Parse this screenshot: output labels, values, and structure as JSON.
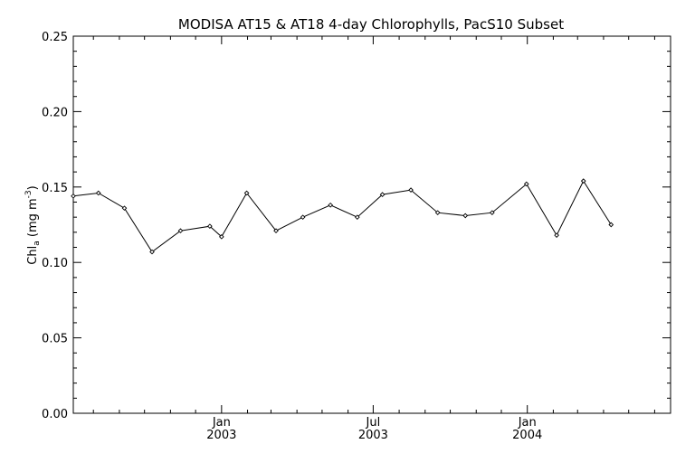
{
  "chart_data": {
    "type": "line",
    "title": "MODISA AT15 & AT18 4-day Chlorophylls, PacS10 Subset",
    "ylabel": {
      "prefix": "Chl",
      "subscript": "a",
      "units_open": " (mg m",
      "superscript": "-3",
      "units_close": ")"
    },
    "xlabel": "",
    "ylim": [
      0.0,
      0.25
    ],
    "xlim": [
      "2002-07-08",
      "2004-06-20"
    ],
    "yticks": [
      "0.00",
      "0.05",
      "0.10",
      "0.15",
      "0.20",
      "0.25"
    ],
    "xticks": [
      {
        "date": "2003-01-01",
        "month": "Jan",
        "year": "2003"
      },
      {
        "date": "2003-07-01",
        "month": "Jul",
        "year": "2003"
      },
      {
        "date": "2004-01-01",
        "month": "Jan",
        "year": "2004"
      }
    ],
    "grid": false,
    "series": [
      {
        "values": [
          {
            "x": "2002-07-08",
            "y": 0.144
          },
          {
            "x": "2002-08-07",
            "y": 0.146
          },
          {
            "x": "2002-09-07",
            "y": 0.136
          },
          {
            "x": "2002-10-10",
            "y": 0.107
          },
          {
            "x": "2002-11-13",
            "y": 0.121
          },
          {
            "x": "2002-12-18",
            "y": 0.124
          },
          {
            "x": "2003-01-01",
            "y": 0.117
          },
          {
            "x": "2003-01-31",
            "y": 0.146
          },
          {
            "x": "2003-03-07",
            "y": 0.121
          },
          {
            "x": "2003-04-08",
            "y": 0.13
          },
          {
            "x": "2003-05-11",
            "y": 0.138
          },
          {
            "x": "2003-06-12",
            "y": 0.13
          },
          {
            "x": "2003-07-12",
            "y": 0.145
          },
          {
            "x": "2003-08-15",
            "y": 0.148
          },
          {
            "x": "2003-09-16",
            "y": 0.133
          },
          {
            "x": "2003-10-19",
            "y": 0.131
          },
          {
            "x": "2003-11-20",
            "y": 0.133
          },
          {
            "x": "2003-12-31",
            "y": 0.152
          },
          {
            "x": "2004-02-05",
            "y": 0.118
          },
          {
            "x": "2004-03-08",
            "y": 0.154
          },
          {
            "x": "2004-04-10",
            "y": 0.125
          }
        ]
      }
    ]
  }
}
